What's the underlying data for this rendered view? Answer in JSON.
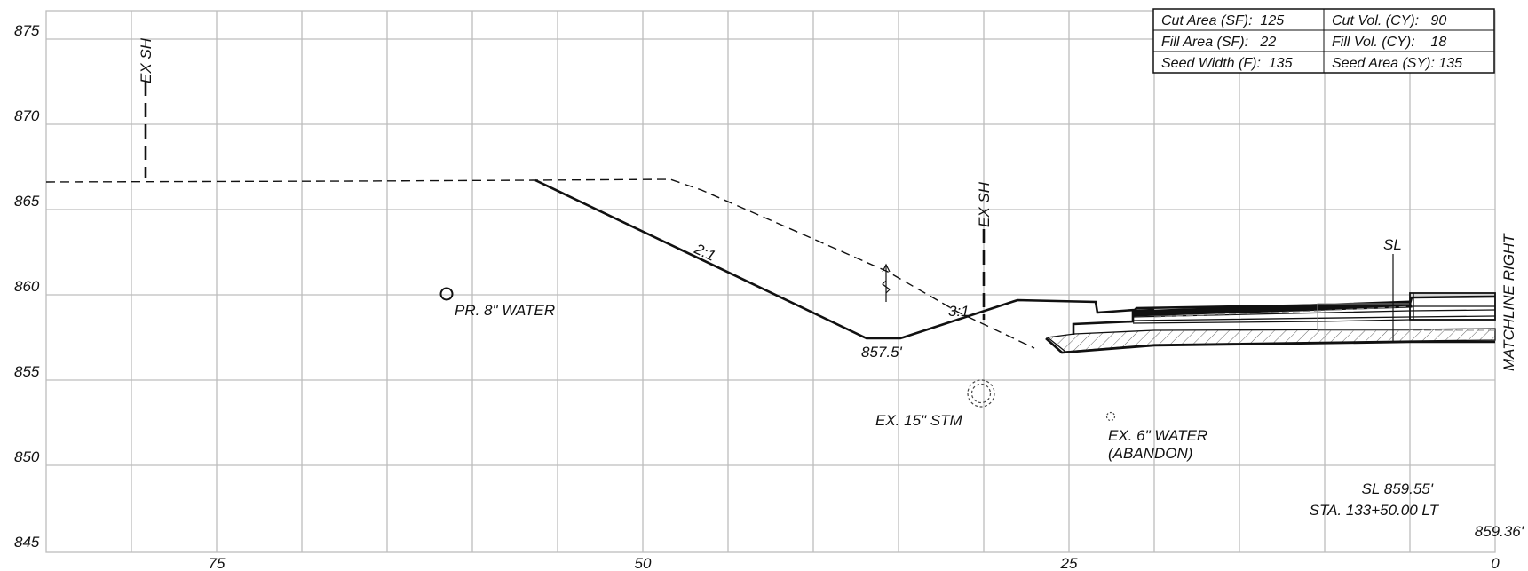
{
  "elevation_ticks": [
    "875",
    "870",
    "865",
    "860",
    "855",
    "850",
    "845"
  ],
  "offset_ticks": [
    "75",
    "50",
    "25",
    "0"
  ],
  "quantity_table": [
    [
      "Cut Area (SF):  125",
      "Cut Vol. (CY):   90"
    ],
    [
      "Fill Area (SF):   22",
      "Fill Vol. (CY):    18"
    ],
    [
      "Seed Width (F):  135",
      "Seed Area (SY): 135"
    ]
  ],
  "labels": {
    "ex_sh_left": "EX SH",
    "ex_sh_mid": "EX SH",
    "slope_2_1": "2:1",
    "slope_3_1": "3:1",
    "ditch_elev": "857.5'",
    "pr_water": "PR. 8\" WATER",
    "ex_stm": "EX. 15\" STM",
    "ex_water_1": "EX. 6\" WATER",
    "ex_water_2": "(ABANDON)",
    "sl": "SL",
    "sl_elev": "SL 859.55'",
    "station": "STA. 133+50.00 LT",
    "cl_elev": "859.36'",
    "matchline": "MATCHLINE RIGHT"
  }
}
